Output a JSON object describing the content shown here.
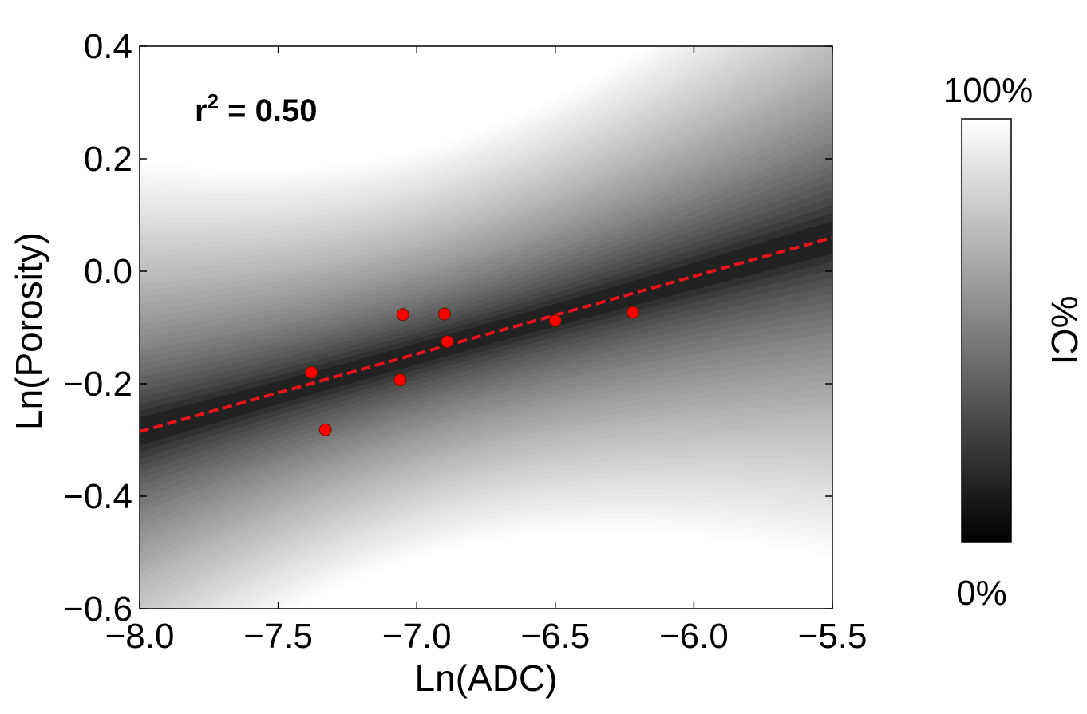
{
  "chart_data": {
    "type": "scatter",
    "xlabel": "Ln(ADC)",
    "ylabel": "Ln(Porosity)",
    "xlim": [
      -8.0,
      -5.5
    ],
    "ylim": [
      -0.6,
      0.4
    ],
    "xticks": [
      -8.0,
      -7.5,
      -7.0,
      -6.5,
      -6.0,
      -5.5
    ],
    "yticks": [
      -0.6,
      -0.4,
      -0.2,
      0.0,
      0.2,
      0.4
    ],
    "xtick_labels": [
      "−8.0",
      "−7.5",
      "−7.0",
      "−6.5",
      "−6.0",
      "−5.5"
    ],
    "ytick_labels": [
      "−0.6",
      "−0.4",
      "−0.2",
      "0.0",
      "0.2",
      "0.4"
    ],
    "annotation": {
      "prefix": "r",
      "superscript": "2",
      "suffix": " = 0.50"
    },
    "fit_line": {
      "x": [
        -8.0,
        -5.5
      ],
      "y": [
        -0.285,
        0.06
      ],
      "color": "#e8141b",
      "style": "dashed"
    },
    "ci_band": {
      "center_x": -6.95,
      "min_halfwidth": 0.09,
      "max_halfwidth": 0.4,
      "levels": 40
    },
    "series": [
      {
        "name": "data",
        "color": "#ff0000",
        "points": [
          {
            "x": -7.38,
            "y": -0.18
          },
          {
            "x": -7.33,
            "y": -0.282
          },
          {
            "x": -7.06,
            "y": -0.193
          },
          {
            "x": -7.05,
            "y": -0.077
          },
          {
            "x": -6.9,
            "y": -0.076
          },
          {
            "x": -6.89,
            "y": -0.125
          },
          {
            "x": -6.5,
            "y": -0.088
          },
          {
            "x": -6.22,
            "y": -0.073
          }
        ]
      }
    ],
    "colorbar": {
      "label": "%CI",
      "top_label": "100%",
      "bottom_label": "0%",
      "colormap": [
        "#000000",
        "#ffffff"
      ]
    }
  }
}
